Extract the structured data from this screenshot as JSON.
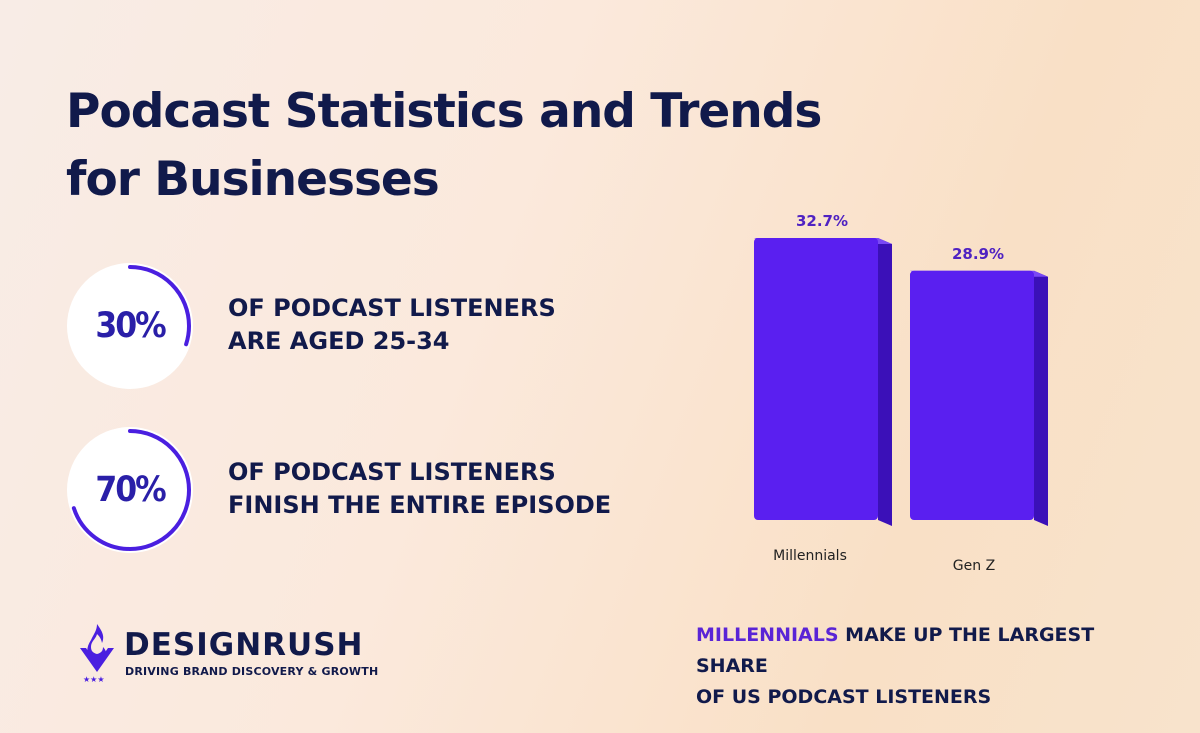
{
  "title_lines": [
    "Podcast Statistics and Trends",
    "for Businesses"
  ],
  "stats": [
    {
      "percent_label": "30%",
      "fraction": 0.3,
      "lines": [
        "OF PODCAST LISTENERS",
        "ARE AGED 25-34"
      ]
    },
    {
      "percent_label": "70%",
      "fraction": 0.7,
      "lines": [
        "OF PODCAST LISTENERS",
        "FINISH THE ENTIRE EPISODE"
      ]
    }
  ],
  "chart_data": {
    "type": "bar",
    "categories": [
      "Millennials",
      "Gen Z"
    ],
    "values": [
      32.7,
      28.9
    ],
    "value_labels": [
      "32.7%",
      "28.9%"
    ],
    "title": "",
    "xlabel": "",
    "ylabel": "",
    "grid": false,
    "legend": "none"
  },
  "caption": {
    "highlight": "MILLENNIALS",
    "rest_line1": " MAKE UP THE LARGEST SHARE",
    "line2": "OF US PODCAST LISTENERS"
  },
  "logo": {
    "brand": "DESIGNRUSH",
    "tagline": "DRIVING BRAND DISCOVERY & GROWTH",
    "icon": "flame-v-icon"
  },
  "colors": {
    "navy": "#111a4b",
    "accent_purple": "#5a24d6",
    "bar_front": "#5a1ff0",
    "bar_top": "#7a48f5",
    "bar_side": "#3b10b8",
    "ring": "#4a1fe0"
  }
}
